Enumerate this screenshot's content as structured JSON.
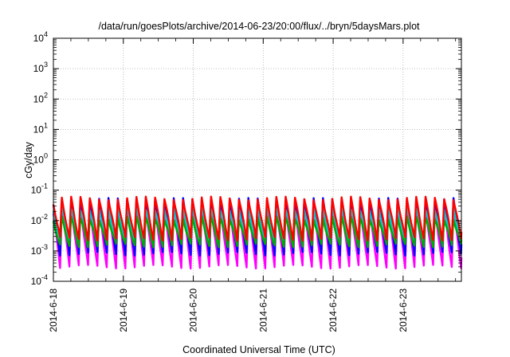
{
  "chart_data": {
    "type": "line",
    "title": "/data/run/goesPlots/archive/2014-06-23/20:00/flux/../bryn/5daysMars.plot",
    "xlabel": "Coordinated Universal Time (UTC)",
    "ylabel": "cGy/day",
    "yscale": "log",
    "ylim": [
      0.0001,
      10000
    ],
    "xlim": [
      "2014-06-18 00:00",
      "2014-06-23 20:00"
    ],
    "x_ticks": [
      "2014-6-18",
      "2014-6-19",
      "2014-6-20",
      "2014-6-21",
      "2014-6-22",
      "2014-6-23"
    ],
    "y_ticks": [
      {
        "base": "10",
        "exp": "-4"
      },
      {
        "base": "10",
        "exp": "-3"
      },
      {
        "base": "10",
        "exp": "-2"
      },
      {
        "base": "10",
        "exp": "-1"
      },
      {
        "base": "10",
        "exp": "0"
      },
      {
        "base": "10",
        "exp": "1"
      },
      {
        "base": "10",
        "exp": "2"
      },
      {
        "base": "10",
        "exp": "3"
      },
      {
        "base": "10",
        "exp": "4"
      }
    ],
    "grid": true,
    "legend": "none",
    "cycle_hours": 3.2,
    "series": [
      {
        "color": "#ff00ff",
        "peak": 0.03,
        "trough": 0.0003
      },
      {
        "color": "#0000ff",
        "peak": 0.05,
        "trough": 0.0008
      },
      {
        "color": "#00cccc",
        "peak": 0.025,
        "trough": 0.002
      },
      {
        "color": "#00aa00",
        "peak": 0.012,
        "trough": 0.0015
      },
      {
        "color": "#ff0000",
        "peak": 0.055,
        "trough": 0.0025
      }
    ]
  }
}
